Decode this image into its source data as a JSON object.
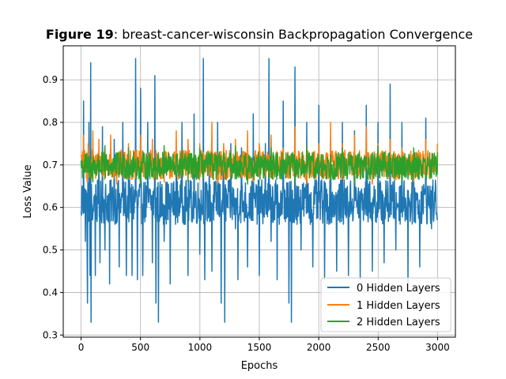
{
  "chart_data": {
    "type": "line",
    "title_prefix": "Figure 19",
    "title_rest": ": breast-cancer-wisconsin Backpropagation Convergence",
    "xlabel": "Epochs",
    "ylabel": "Loss Value",
    "xlim": [
      -150,
      3150
    ],
    "ylim": [
      0.295,
      0.98
    ],
    "xticks": [
      0,
      500,
      1000,
      1500,
      2000,
      2500,
      3000
    ],
    "yticks": [
      0.3,
      0.4,
      0.5,
      0.6,
      0.7,
      0.8,
      0.9
    ],
    "xtick_labels": [
      "0",
      "500",
      "1000",
      "1500",
      "2000",
      "2500",
      "3000"
    ],
    "ytick_labels": [
      "0.3",
      "0.4",
      "0.5",
      "0.6",
      "0.7",
      "0.8",
      "0.9"
    ],
    "grid": true,
    "legend_position": "lower-right",
    "series": [
      {
        "name": "0 Hidden Layers",
        "color": "#1f77b4",
        "band": [
          0.56,
          0.665
        ],
        "points": [
          [
            0,
            0.59
          ],
          [
            10,
            0.65
          ],
          [
            20,
            0.85
          ],
          [
            35,
            0.52
          ],
          [
            50,
            0.49
          ],
          [
            55,
            0.375
          ],
          [
            65,
            0.8
          ],
          [
            75,
            0.44
          ],
          [
            80,
            0.94
          ],
          [
            85,
            0.33
          ],
          [
            100,
            0.58
          ],
          [
            120,
            0.44
          ],
          [
            150,
            0.73
          ],
          [
            160,
            0.47
          ],
          [
            180,
            0.79
          ],
          [
            200,
            0.5
          ],
          [
            240,
            0.42
          ],
          [
            280,
            0.76
          ],
          [
            320,
            0.46
          ],
          [
            350,
            0.8
          ],
          [
            380,
            0.44
          ],
          [
            400,
            0.72
          ],
          [
            430,
            0.44
          ],
          [
            460,
            0.95
          ],
          [
            475,
            0.43
          ],
          [
            500,
            0.88
          ],
          [
            520,
            0.44
          ],
          [
            560,
            0.8
          ],
          [
            600,
            0.47
          ],
          [
            620,
            0.91
          ],
          [
            630,
            0.375
          ],
          [
            650,
            0.33
          ],
          [
            700,
            0.52
          ],
          [
            750,
            0.42
          ],
          [
            800,
            0.7
          ],
          [
            850,
            0.8
          ],
          [
            900,
            0.44
          ],
          [
            950,
            0.82
          ],
          [
            1000,
            0.49
          ],
          [
            1030,
            0.95
          ],
          [
            1040,
            0.43
          ],
          [
            1080,
            0.7
          ],
          [
            1100,
            0.45
          ],
          [
            1150,
            0.8
          ],
          [
            1180,
            0.375
          ],
          [
            1200,
            0.7
          ],
          [
            1210,
            0.33
          ],
          [
            1260,
            0.75
          ],
          [
            1300,
            0.55
          ],
          [
            1320,
            0.43
          ],
          [
            1350,
            0.74
          ],
          [
            1400,
            0.46
          ],
          [
            1450,
            0.82
          ],
          [
            1500,
            0.44
          ],
          [
            1550,
            0.75
          ],
          [
            1580,
            0.95
          ],
          [
            1600,
            0.52
          ],
          [
            1650,
            0.43
          ],
          [
            1700,
            0.85
          ],
          [
            1750,
            0.375
          ],
          [
            1770,
            0.33
          ],
          [
            1800,
            0.93
          ],
          [
            1850,
            0.5
          ],
          [
            1900,
            0.8
          ],
          [
            1950,
            0.46
          ],
          [
            2000,
            0.84
          ],
          [
            2050,
            0.43
          ],
          [
            2100,
            0.76
          ],
          [
            2150,
            0.45
          ],
          [
            2200,
            0.8
          ],
          [
            2250,
            0.44
          ],
          [
            2300,
            0.78
          ],
          [
            2350,
            0.43
          ],
          [
            2400,
            0.84
          ],
          [
            2450,
            0.45
          ],
          [
            2500,
            0.8
          ],
          [
            2550,
            0.47
          ],
          [
            2600,
            0.89
          ],
          [
            2650,
            0.5
          ],
          [
            2700,
            0.8
          ],
          [
            2750,
            0.42
          ],
          [
            2800,
            0.73
          ],
          [
            2850,
            0.46
          ],
          [
            2900,
            0.81
          ],
          [
            2950,
            0.55
          ],
          [
            3000,
            0.57
          ]
        ]
      },
      {
        "name": "1 Hidden Layers",
        "color": "#ff7f0e",
        "band": [
          0.665,
          0.735
        ],
        "points": [
          [
            0,
            0.72
          ],
          [
            20,
            0.77
          ],
          [
            60,
            0.75
          ],
          [
            100,
            0.78
          ],
          [
            150,
            0.76
          ],
          [
            250,
            0.77
          ],
          [
            400,
            0.75
          ],
          [
            500,
            0.77
          ],
          [
            600,
            0.76
          ],
          [
            800,
            0.78
          ],
          [
            900,
            0.76
          ],
          [
            1000,
            0.75
          ],
          [
            1100,
            0.8
          ],
          [
            1200,
            0.75
          ],
          [
            1300,
            0.76
          ],
          [
            1400,
            0.78
          ],
          [
            1500,
            0.75
          ],
          [
            1600,
            0.77
          ],
          [
            1700,
            0.74
          ],
          [
            1800,
            0.79
          ],
          [
            1900,
            0.76
          ],
          [
            2000,
            0.75
          ],
          [
            2100,
            0.8
          ],
          [
            2200,
            0.75
          ],
          [
            2300,
            0.77
          ],
          [
            2400,
            0.79
          ],
          [
            2500,
            0.75
          ],
          [
            2600,
            0.76
          ],
          [
            2700,
            0.74
          ],
          [
            2800,
            0.77
          ],
          [
            2900,
            0.76
          ],
          [
            3000,
            0.75
          ],
          [
            50,
            0.66
          ],
          [
            300,
            0.655
          ],
          [
            700,
            0.66
          ],
          [
            1150,
            0.655
          ],
          [
            1450,
            0.66
          ],
          [
            1900,
            0.655
          ],
          [
            2450,
            0.655
          ],
          [
            2800,
            0.66
          ]
        ]
      },
      {
        "name": "2 Hidden Layers",
        "color": "#2ca02c",
        "band": [
          0.665,
          0.73
        ],
        "points": [
          [
            0,
            0.71
          ],
          [
            200,
            0.745
          ],
          [
            400,
            0.74
          ],
          [
            700,
            0.745
          ],
          [
            1000,
            0.74
          ],
          [
            1300,
            0.745
          ],
          [
            1600,
            0.74
          ],
          [
            1900,
            0.745
          ],
          [
            2200,
            0.74
          ],
          [
            2500,
            0.745
          ],
          [
            2800,
            0.74
          ],
          [
            3000,
            0.73
          ],
          [
            100,
            0.66
          ],
          [
            500,
            0.655
          ],
          [
            900,
            0.66
          ],
          [
            1400,
            0.655
          ],
          [
            1800,
            0.66
          ],
          [
            2300,
            0.655
          ],
          [
            2700,
            0.66
          ]
        ]
      }
    ]
  }
}
